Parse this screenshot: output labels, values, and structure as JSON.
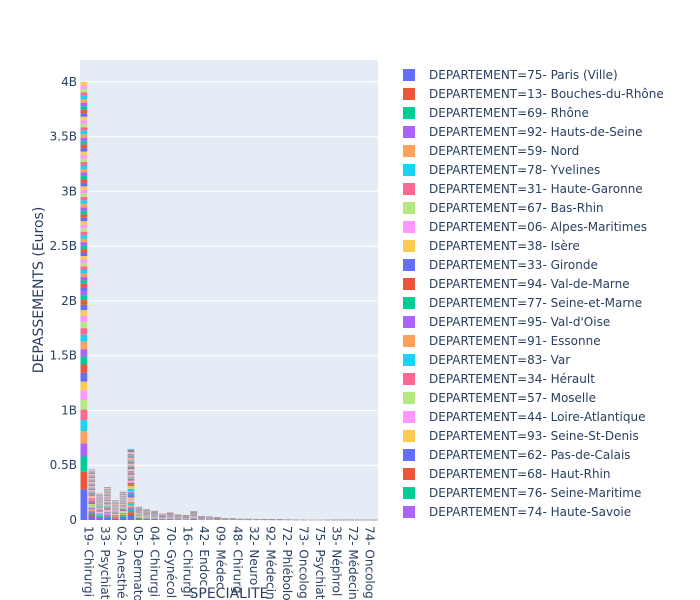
{
  "chart_data": {
    "type": "bar",
    "barmode": "stack",
    "xlabel": "SPECIALITE",
    "ylabel": "DEPASSEMENTS (Euros)",
    "ylim": [
      0,
      4200000000.0
    ],
    "y_ticks": [
      {
        "value": 0,
        "label": "0"
      },
      {
        "value": 500000000.0,
        "label": "0.5B"
      },
      {
        "value": 1000000000.0,
        "label": "1B"
      },
      {
        "value": 1500000000.0,
        "label": "1.5B"
      },
      {
        "value": 2000000000.0,
        "label": "2B"
      },
      {
        "value": 2500000000.0,
        "label": "2.5B"
      },
      {
        "value": 3000000000.0,
        "label": "3B"
      },
      {
        "value": 3500000000.0,
        "label": "3.5B"
      },
      {
        "value": 4000000000.0,
        "label": "4B"
      }
    ],
    "x_tick_labels": [
      "19- Chirurgi",
      "33- Psychiat",
      "02- Anesthé",
      "05- Dermato",
      "04- Chirurgi",
      "70- Gynécol",
      "16- Chirurgi",
      "42- Endoc",
      "09- Médec",
      "48- Chirurg",
      "32- Neuro",
      "92- Médecin",
      "72- Phlébolo",
      "73- Oncolog",
      "75- Psychiat",
      "35- Néphrol",
      "72- Médecin",
      "74- Oncolog"
    ],
    "category_totals": [
      4000000000.0,
      460000000.0,
      240000000.0,
      300000000.0,
      180000000.0,
      260000000.0,
      650000000.0,
      120000000.0,
      100000000.0,
      85000000.0,
      60000000.0,
      70000000.0,
      50000000.0,
      45000000.0,
      80000000.0,
      35000000.0,
      30000000.0,
      25000000.0,
      18000000.0,
      15000000.0,
      12000000.0,
      10000000.0,
      9000000.0,
      8000000.0,
      7000000.0,
      6000000.0,
      5000000.0,
      4500000.0,
      4000000.0,
      3500000.0,
      3000000.0,
      2500000.0,
      2000000.0,
      1500000.0,
      1200000.0,
      1000000.0,
      800000.0,
      600000.0
    ],
    "series_names": [
      "DEPARTEMENT=75- Paris (Ville)",
      "DEPARTEMENT=13- Bouches-du-Rhône",
      "DEPARTEMENT=69- Rhône",
      "DEPARTEMENT=92- Hauts-de-Seine",
      "DEPARTEMENT=59- Nord",
      "DEPARTEMENT=78- Yvelines",
      "DEPARTEMENT=31- Haute-Garonne",
      "DEPARTEMENT=67- Bas-Rhin",
      "DEPARTEMENT=06- Alpes-Maritimes",
      "DEPARTEMENT=38- Isère",
      "DEPARTEMENT=33- Gironde",
      "DEPARTEMENT=94- Val-de-Marne",
      "DEPARTEMENT=77- Seine-et-Marne",
      "DEPARTEMENT=95- Val-d'Oise",
      "DEPARTEMENT=91- Essonne",
      "DEPARTEMENT=83- Var",
      "DEPARTEMENT=34- Hérault",
      "DEPARTEMENT=57- Moselle",
      "DEPARTEMENT=44- Loire-Atlantique",
      "DEPARTEMENT=93- Seine-St-Denis",
      "DEPARTEMENT=62- Pas-de-Calais",
      "DEPARTEMENT=68- Haut-Rhin",
      "DEPARTEMENT=76- Seine-Maritime",
      "DEPARTEMENT=74- Haute-Savoie"
    ],
    "series_shares": [
      0.07,
      0.04,
      0.035,
      0.03,
      0.028,
      0.025,
      0.024,
      0.022,
      0.022,
      0.02,
      0.02,
      0.019,
      0.018,
      0.017,
      0.017,
      0.016,
      0.015,
      0.014,
      0.014,
      0.013,
      0.012,
      0.011,
      0.011,
      0.01
    ],
    "colors": [
      "#636efa",
      "#EF553B",
      "#00cc96",
      "#ab63fa",
      "#FFA15A",
      "#19d3f3",
      "#FF6692",
      "#B6E880",
      "#FF97FF",
      "#FECB52"
    ],
    "plot_bgcolor": "#E5ECF6",
    "grid": true,
    "legend_position": "right"
  }
}
